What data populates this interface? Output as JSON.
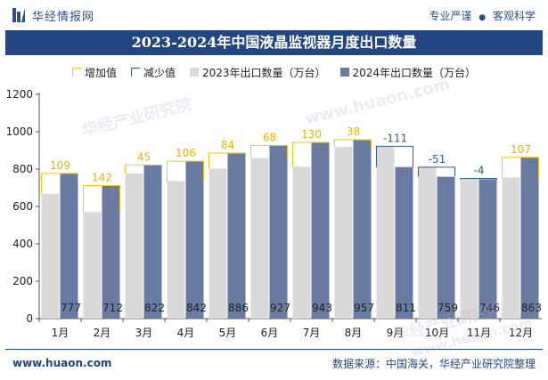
{
  "header": {
    "brand": "华经情报网",
    "tagline_a": "专业严谨",
    "tagline_sep": "●",
    "tagline_b": "客观科学"
  },
  "footer": {
    "website": "www.huaon.com",
    "source": "数据来源：中国海关，华经产业研究院整理"
  },
  "watermarks": [
    "华经产业研究院",
    "www.huaon.com",
    "华经产业研究院",
    "www.huaon.com"
  ],
  "colors": {
    "bar_2023": "#d9d9d9",
    "bar_2024": "#6a7ba2",
    "increase": "#f5c518",
    "decrease": "#2f5f8c",
    "title_bg": "#22467f"
  },
  "chart_data": {
    "type": "bar",
    "title": "2023-2024年中国液晶监视器月度出口数量",
    "categories": [
      "1月",
      "2月",
      "3月",
      "4月",
      "5月",
      "6月",
      "7月",
      "8月",
      "9月",
      "10月",
      "11月",
      "12月"
    ],
    "series": [
      {
        "name": "2023年出口数量（万台）",
        "values": [
          668,
          570,
          777,
          736,
          802,
          859,
          813,
          919,
          922,
          810,
          750,
          756
        ]
      },
      {
        "name": "2024年出口数量（万台）",
        "values": [
          777,
          712,
          822,
          842,
          886,
          927,
          943,
          957,
          811,
          759,
          746,
          863
        ]
      }
    ],
    "diff_series": [
      {
        "name": "增加值",
        "kind": "increase"
      },
      {
        "name": "减少值",
        "kind": "decrease"
      }
    ],
    "diff_labels": [
      "109",
      "142",
      "45",
      "106",
      "84",
      "68",
      "130",
      "38",
      "-111",
      "-51",
      "-4",
      "107"
    ],
    "ylim": [
      0,
      1200
    ],
    "yticks": [
      0,
      200,
      400,
      600,
      800,
      1000,
      1200
    ],
    "legend_position": "top",
    "grid": false
  }
}
